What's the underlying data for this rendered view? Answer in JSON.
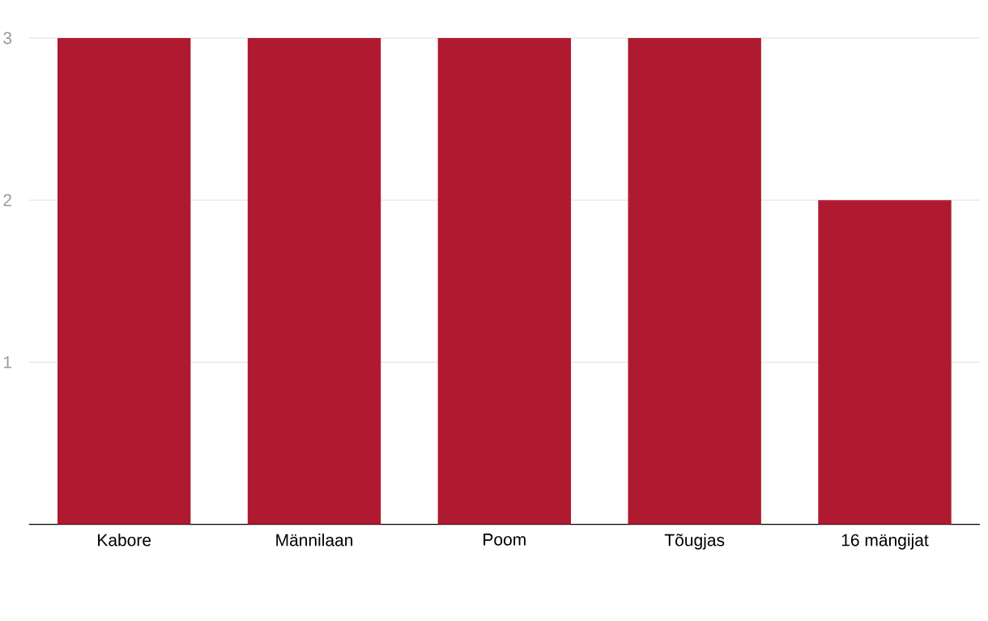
{
  "chart_data": {
    "type": "bar",
    "categories": [
      "Kabore",
      "Männilaan",
      "Poom",
      "Tõugjas",
      "16 mängijat"
    ],
    "values": [
      3,
      3,
      3,
      3,
      2
    ],
    "color": "#b01a31",
    "ylim": [
      0,
      3
    ],
    "yticks": [
      1,
      2,
      3
    ],
    "grid": "y"
  }
}
